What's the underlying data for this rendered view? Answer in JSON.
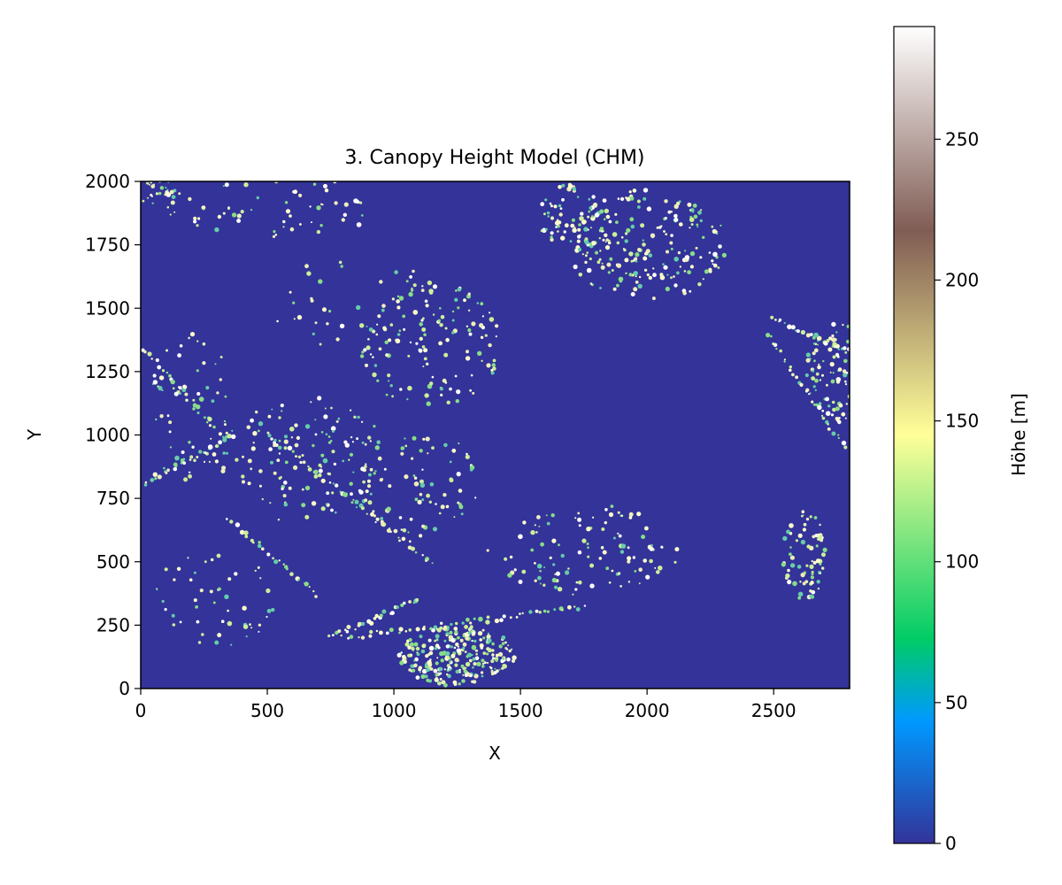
{
  "chart_data": {
    "type": "heatmap",
    "title": "3. Canopy Height Model (CHM)",
    "xlabel": "X",
    "ylabel": "Y",
    "xlim": [
      0,
      2800
    ],
    "ylim": [
      0,
      2000
    ],
    "x_ticks": [
      0,
      500,
      1000,
      1500,
      2000,
      2500
    ],
    "y_ticks": [
      0,
      250,
      500,
      750,
      1000,
      1250,
      1500,
      1750,
      2000
    ],
    "colorbar": {
      "label": "Höhe [m]",
      "range": [
        0,
        290
      ],
      "ticks": [
        0,
        50,
        100,
        150,
        200,
        250
      ],
      "colormap": "terrain",
      "stops": [
        {
          "value": 0,
          "color": "#333399"
        },
        {
          "value": 0.15,
          "color": "#0099ff"
        },
        {
          "value": 0.25,
          "color": "#00cc66"
        },
        {
          "value": 0.5,
          "color": "#ffff99"
        },
        {
          "value": 0.75,
          "color": "#805c54"
        },
        {
          "value": 1.0,
          "color": "#ffffff"
        }
      ]
    },
    "background_color": "#333399",
    "vegetation_clusters": [
      {
        "x": 1250,
        "y": 130,
        "rx": 230,
        "ry": 120,
        "n": 260
      },
      {
        "x": 2000,
        "y": 1750,
        "rx": 320,
        "ry": 220,
        "n": 200
      },
      {
        "x": 2750,
        "y": 1250,
        "rx": 120,
        "ry": 200,
        "n": 110
      },
      {
        "x": 2620,
        "y": 520,
        "rx": 90,
        "ry": 180,
        "n": 70
      },
      {
        "x": 1700,
        "y": 1850,
        "rx": 130,
        "ry": 140,
        "n": 70
      },
      {
        "x": 1150,
        "y": 1350,
        "rx": 280,
        "ry": 250,
        "n": 130
      },
      {
        "x": 650,
        "y": 900,
        "rx": 330,
        "ry": 250,
        "n": 130
      },
      {
        "x": 1750,
        "y": 550,
        "rx": 380,
        "ry": 180,
        "n": 110
      },
      {
        "x": 200,
        "y": 1100,
        "rx": 180,
        "ry": 300,
        "n": 60
      },
      {
        "x": 1100,
        "y": 800,
        "rx": 240,
        "ry": 220,
        "n": 80
      },
      {
        "x": 300,
        "y": 350,
        "rx": 250,
        "ry": 200,
        "n": 50
      },
      {
        "x": 550,
        "y": 1900,
        "rx": 450,
        "ry": 120,
        "n": 60
      },
      {
        "x": 850,
        "y": 1500,
        "rx": 350,
        "ry": 200,
        "n": 40
      },
      {
        "x": 80,
        "y": 1950,
        "rx": 80,
        "ry": 60,
        "n": 25
      }
    ],
    "tree_lines": [
      {
        "from": [
          0,
          1350
        ],
        "to": [
          320,
          1000
        ],
        "n": 28
      },
      {
        "from": [
          0,
          800
        ],
        "to": [
          370,
          1000
        ],
        "n": 30
      },
      {
        "from": [
          500,
          1000
        ],
        "to": [
          1150,
          500
        ],
        "n": 50
      },
      {
        "from": [
          350,
          660
        ],
        "to": [
          700,
          370
        ],
        "n": 26
      },
      {
        "from": [
          750,
          200
        ],
        "to": [
          1100,
          350
        ],
        "n": 28
      },
      {
        "from": [
          800,
          200
        ],
        "to": [
          1750,
          320
        ],
        "n": 50
      },
      {
        "from": [
          2490,
          1460
        ],
        "to": [
          2800,
          1330
        ],
        "n": 25
      },
      {
        "from": [
          2480,
          1400
        ],
        "to": [
          2780,
          950
        ],
        "n": 30
      }
    ]
  }
}
